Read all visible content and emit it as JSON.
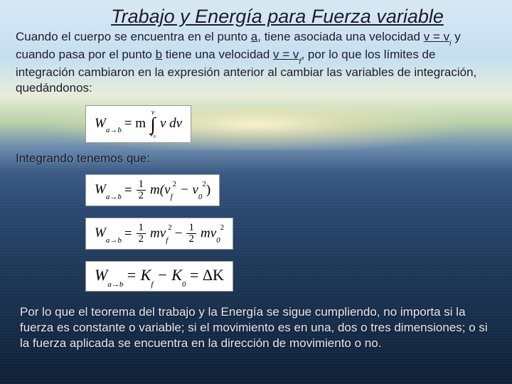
{
  "title": "Trabajo y Energía para Fuerza variable",
  "para1_pre": "Cuando el cuerpo se encuentra en el punto ",
  "para1_a": "a",
  "para1_mid1": ", tiene asociada una velocidad ",
  "para1_vvi": "v = v",
  "para1_vi_sub": "i",
  "para1_mid2": " y cuando pasa por el punto ",
  "para1_b": "b",
  "para1_mid3": " tiene una velocidad ",
  "para1_vvf": "v = v",
  "para1_vf_sub": "f",
  "para1_tail": ", por lo que los límites de integración cambiaron en la expresión anterior al cambiar las variables de integración, quedándonos:",
  "eq1_lhs": "W",
  "eq1_sub": "a→b",
  "eq1_eq": " = m",
  "eq1_int_top": "v",
  "eq1_int_bot": "v₀",
  "eq1_rhs": " v dv",
  "subtitle": "Integrando tenemos que:",
  "eq2_lhs": "W",
  "eq2_sub": "a→b",
  "eq2_eq": " = ",
  "eq2_frac_n": "1",
  "eq2_frac_d": "2",
  "eq2_m": "m(v",
  "eq2_f": "f",
  "eq2_sq1": "2",
  "eq2_minus": " − v",
  "eq2_0": "0",
  "eq2_sq2": "2",
  "eq2_close": ")",
  "eq3_lhs": "W",
  "eq3_sub": "a→b",
  "eq3_eq": " = ",
  "eq3_t1": "mv",
  "eq3_f": "f",
  "eq3_sq1": "2",
  "eq3_minus": " − ",
  "eq3_t2": "mv",
  "eq3_0": "0",
  "eq3_sq2": "2",
  "eq4_lhs": "W",
  "eq4_sub": "a→b",
  "eq4_rhs": " = K",
  "eq4_kf": "f",
  "eq4_mid": " − K",
  "eq4_k0": "0",
  "eq4_dk": " = ΔK",
  "final": "Por lo que el teorema del trabajo y la Energía se sigue cumpliendo, no importa si la fuerza es constante o variable; si el movimiento es en una, dos o tres dimensiones; o si la fuerza aplicada se encuentra en la dirección de movimiento o no.",
  "colors": {
    "text_dark": "#1a1a2a",
    "text_light": "#e8e8f0",
    "eq_bg": "#ffffff"
  }
}
